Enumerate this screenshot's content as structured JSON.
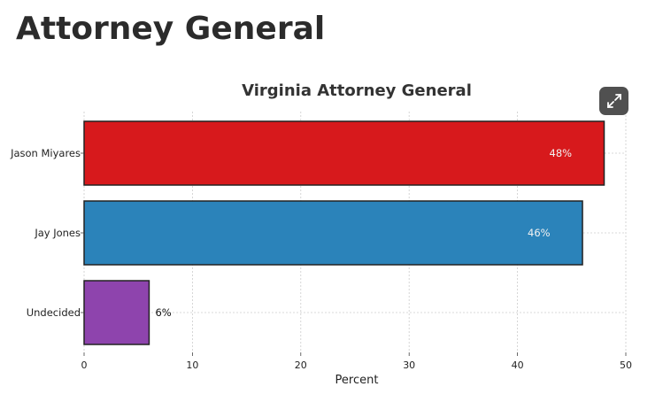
{
  "page": {
    "heading": "Attorney General"
  },
  "toolbar": {
    "expand_icon": "expand-arrows-icon"
  },
  "chart_data": {
    "type": "bar",
    "orientation": "horizontal",
    "title": "Virginia Attorney General",
    "xlabel": "Percent",
    "ylabel": "",
    "categories": [
      "Jason Miyares",
      "Jay Jones",
      "Undecided"
    ],
    "values": [
      48,
      46,
      6
    ],
    "value_labels": [
      "48%",
      "46%",
      "6%"
    ],
    "colors": [
      "#d7191c",
      "#2b83ba",
      "#8e44ad"
    ],
    "xlim": [
      0,
      50
    ],
    "xticks": [
      0,
      10,
      20,
      30,
      40,
      50
    ],
    "grid": true,
    "legend": "none"
  }
}
